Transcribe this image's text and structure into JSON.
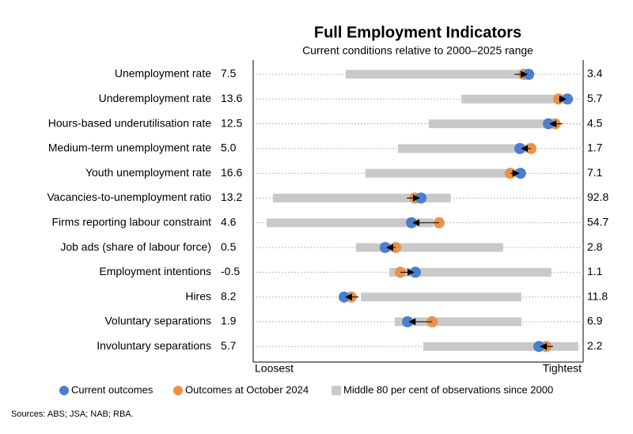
{
  "chart_data": {
    "type": "range-dot",
    "title": "Full Employment Indicators",
    "subtitle": "Current conditions relative to 2000–2025 range",
    "categories": [
      "Unemployment rate",
      "Underemployment rate",
      "Hours-based underutilisation rate",
      "Medium-term unemployment rate",
      "Youth unemployment rate",
      "Vacancies-to-unemployment ratio",
      "Firms reporting labour constraint",
      "Job ads (share of labour force)",
      "Employment intentions",
      "Hires",
      "Voluntary separations",
      "Involuntary separations"
    ],
    "left_labels": [
      "7.5",
      "13.6",
      "12.5",
      "5.0",
      "16.6",
      "13.2",
      "4.6",
      "0.5",
      "-0.5",
      "8.2",
      "1.9",
      "5.7"
    ],
    "right_labels": [
      "3.4",
      "5.7",
      "4.5",
      "1.7",
      "7.1",
      "92.8",
      "54.7",
      "2.8",
      "1.1",
      "11.8",
      "6.9",
      "2.2"
    ],
    "series": [
      {
        "name": "Current outcomes",
        "color": "#4a7fd0",
        "values": [
          83.9,
          95.7,
          89.9,
          81.2,
          81.4,
          51.1,
          48.2,
          40.2,
          49.4,
          27.7,
          47.0,
          87.0
        ]
      },
      {
        "name": "Outcomes at October 2024",
        "color": "#e8924b",
        "values": [
          82.4,
          93.0,
          92.0,
          84.6,
          78.3,
          49.2,
          56.6,
          43.4,
          44.8,
          29.9,
          54.5,
          89.2
        ]
      }
    ],
    "range": {
      "name": "Middle 80 per cent of observations since 2000",
      "color": "#c9c9c9",
      "low": [
        28.2,
        63.4,
        53.5,
        44.1,
        34.2,
        6.0,
        4.1,
        31.3,
        41.4,
        32.8,
        43.1,
        51.8
      ],
      "high": [
        83.1,
        94.5,
        91.6,
        83.9,
        81.4,
        60.2,
        54.9,
        76.1,
        90.8,
        81.7,
        81.7,
        99.0
      ]
    },
    "xlim": [
      0,
      100
    ],
    "x_label_low": "Loosest",
    "x_label_high": "Tightest",
    "source": "Sources: ABS; JSA; NAB; RBA."
  }
}
